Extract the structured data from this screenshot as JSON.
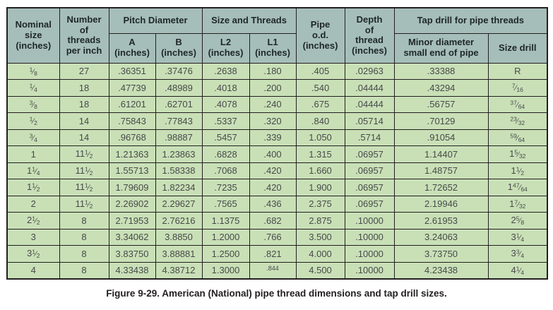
{
  "figure": {
    "caption": "Figure 9-29. American (National) pipe thread dimensions and tap drill sizes."
  },
  "colors": {
    "header_bg": "#a6beb9",
    "row_bg": "#c9e0b7",
    "border": "#231f20"
  },
  "table": {
    "headers": {
      "nominal_size": "Nominal\nsize\n(inches)",
      "threads_per_inch": "Number\nof\nthreads\nper inch",
      "pitch_diameter_group": "Pitch Diameter",
      "pitch_a": "A\n(inches)",
      "pitch_b": "B\n(inches)",
      "size_threads_group": "Size and Threads",
      "l2": "L2\n(inches)",
      "l1": "L1\n(inches)",
      "pipe_od": "Pipe\no.d.\n(inches)",
      "depth_of_thread": "Depth\nof\nthread\n(inches)",
      "tap_drill_group": "Tap drill for pipe threads",
      "minor_diameter": "Minor diameter\nsmall end of pipe",
      "size_drill": "Size drill"
    },
    "column_keys": [
      "nominal-size",
      "threads-per-inch",
      "pitch-a",
      "pitch-b",
      "l2",
      "l1",
      "pipe-od",
      "depth-of-thread",
      "minor-diameter",
      "size-drill"
    ],
    "rows": [
      [
        "1/8",
        "27",
        ".36351",
        ".37476",
        ".2638",
        ".180",
        ".405",
        ".02963",
        ".33388",
        "R"
      ],
      [
        "1/4",
        "18",
        ".47739",
        ".48989",
        ".4018",
        ".200",
        ".540",
        ".04444",
        ".43294",
        "7/16"
      ],
      [
        "3/8",
        "18",
        ".61201",
        ".62701",
        ".4078",
        ".240",
        ".675",
        ".04444",
        ".56757",
        "37/64"
      ],
      [
        "1/2",
        "14",
        ".75843",
        ".77843",
        ".5337",
        ".320",
        ".840",
        ".05714",
        ".70129",
        "23/32"
      ],
      [
        "3/4",
        "14",
        ".96768",
        ".98887",
        ".5457",
        ".339",
        "1.050",
        ".5714",
        ".91054",
        "59/64"
      ],
      [
        "1",
        "11 1/2",
        "1.21363",
        "1.23863",
        ".6828",
        ".400",
        "1.315",
        ".06957",
        "1.14407",
        "1 5/32"
      ],
      [
        "1 1/4",
        "11 1/2",
        "1.55713",
        "1.58338",
        ".7068",
        ".420",
        "1.660",
        ".06957",
        "1.48757",
        "1 1/2"
      ],
      [
        "1 1/2",
        "11 1/2",
        "1.79609",
        "1.82234",
        ".7235",
        ".420",
        "1.900",
        ".06957",
        "1.72652",
        "1 47/64"
      ],
      [
        "2",
        "11 1/2",
        "2.26902",
        "2.29627",
        ".7565",
        ".436",
        "2.375",
        ".06957",
        "2.19946",
        "1 7/32"
      ],
      [
        "2 1/2",
        "8",
        "2.71953",
        "2.76216",
        "1.1375",
        ".682",
        "2.875",
        ".10000",
        "2.61953",
        "2 5/8"
      ],
      [
        "3",
        "8",
        "3.34062",
        "3.8850",
        "1.2000",
        ".766",
        "3.500",
        ".10000",
        "3.24063",
        "3 1/4"
      ],
      [
        "3 1/2",
        "8",
        "3.83750",
        "3.88881",
        "1.2500",
        ".821",
        "4.000",
        ".10000",
        "3.73750",
        "3 3/4"
      ],
      [
        "4",
        "8",
        "4.33438",
        "4.38712",
        "1.3000",
        ".844",
        "4.500",
        ".10000",
        "4.23438",
        "4 1/4"
      ]
    ],
    "small_cells": [
      [
        12,
        5
      ]
    ]
  }
}
